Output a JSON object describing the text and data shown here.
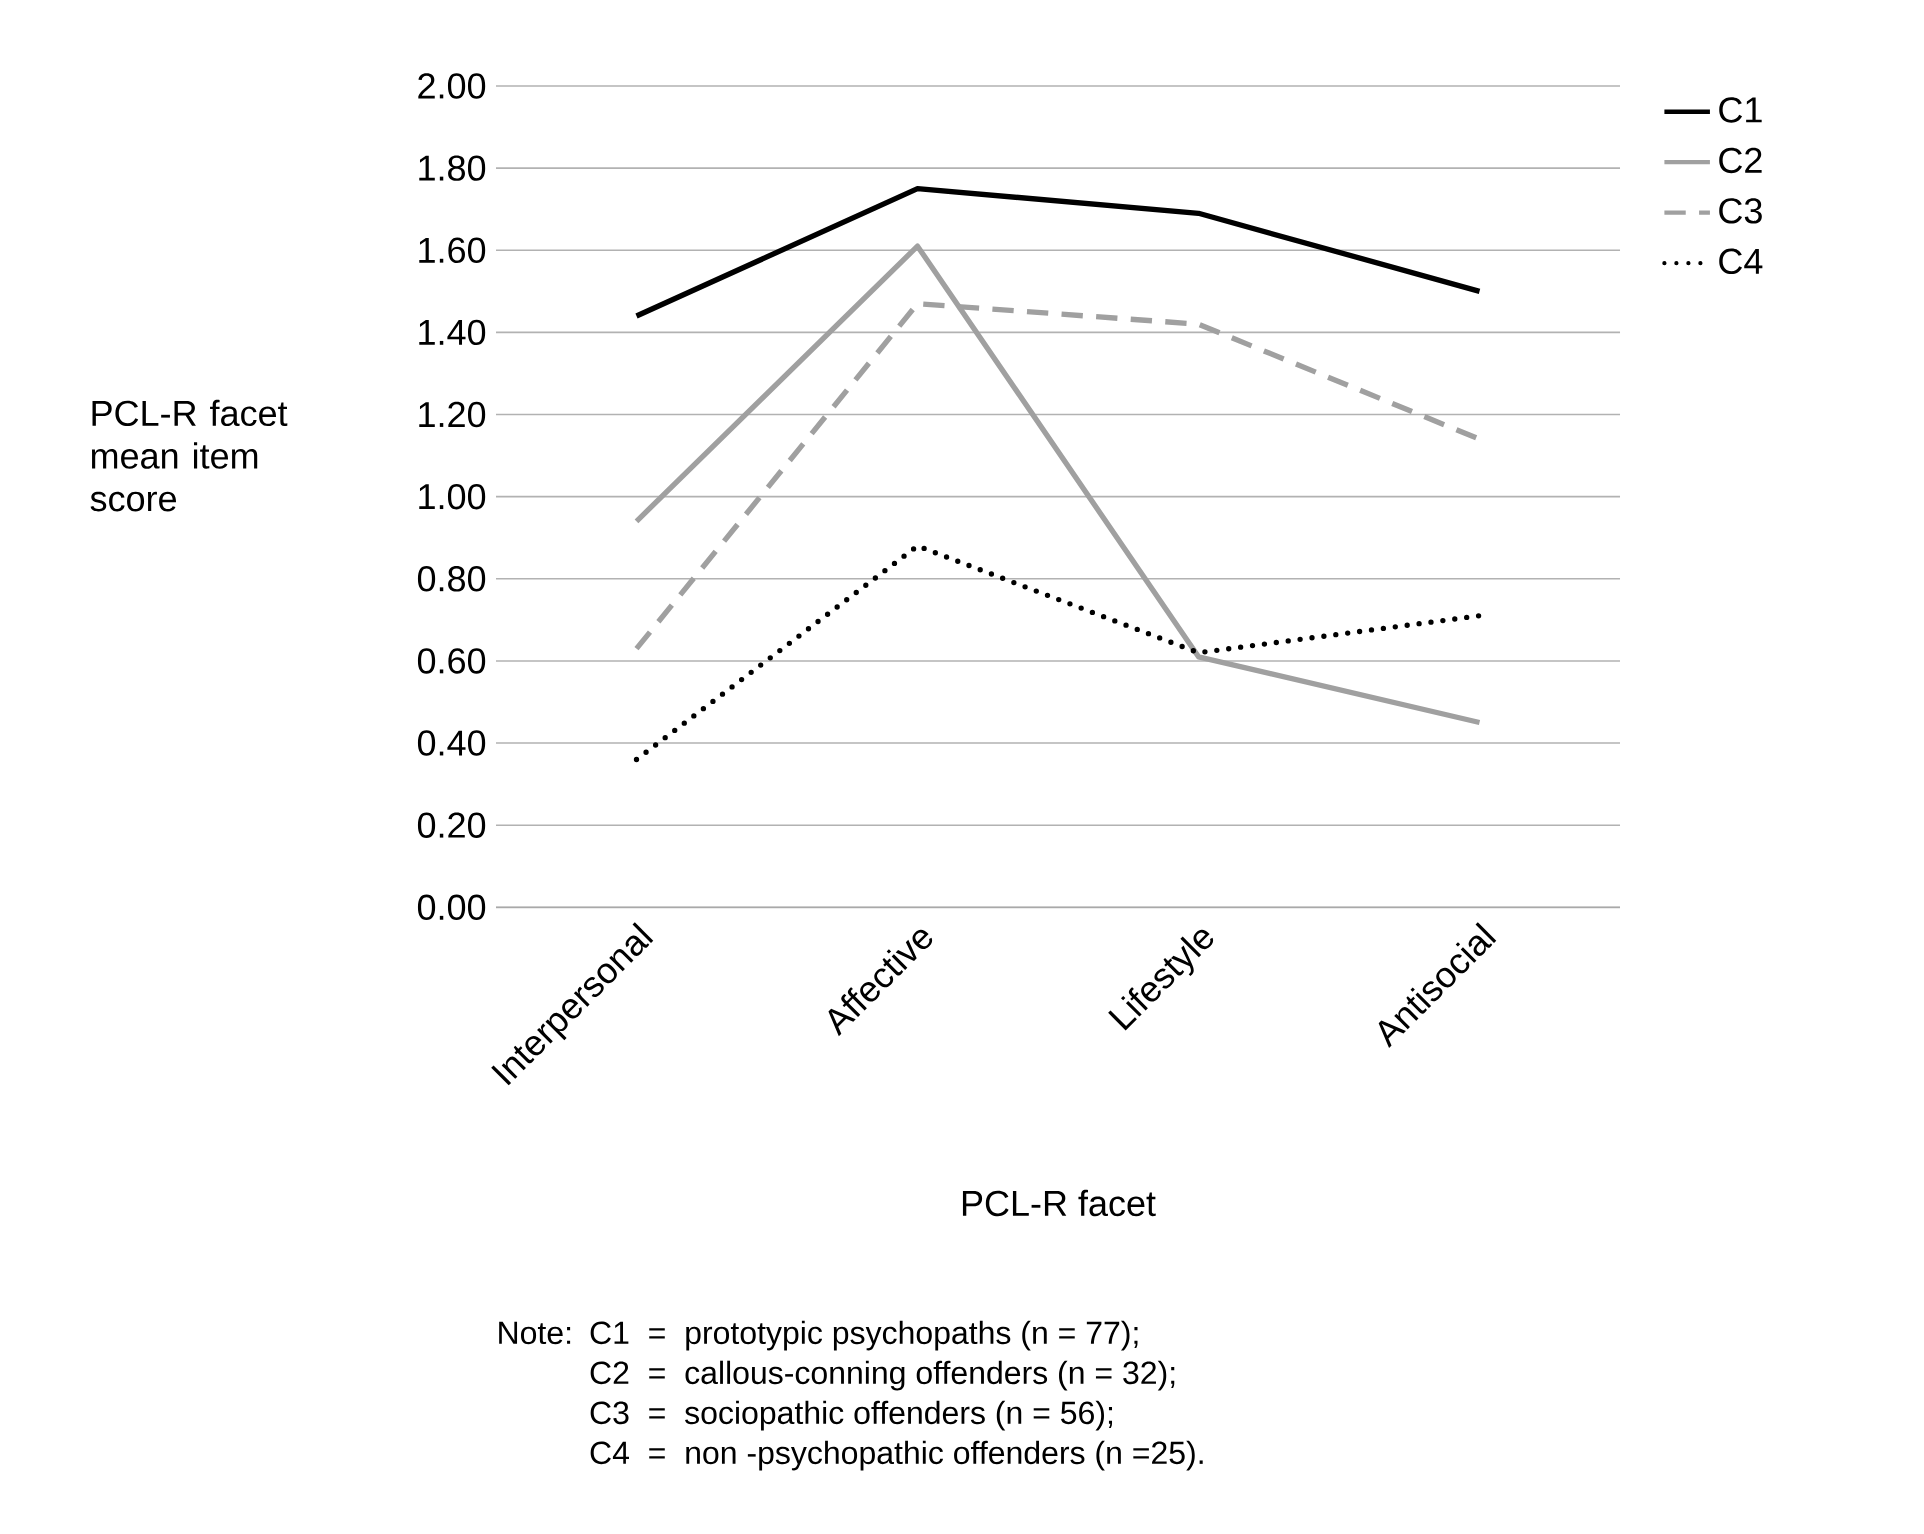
{
  "chart_data": {
    "type": "line",
    "xlabel": "PCL-R facet",
    "ylabel": "PCL-R facet mean item score",
    "categories": [
      "Interpersonal",
      "Affective",
      "Lifestyle",
      "Antisocial"
    ],
    "series": [
      {
        "name": "C1",
        "color": "#000000",
        "line_style": "solid",
        "values": [
          1.44,
          1.75,
          1.69,
          1.5
        ]
      },
      {
        "name": "C2",
        "color": "#a0a0a0",
        "line_style": "solid",
        "values": [
          0.94,
          1.61,
          0.61,
          0.45
        ]
      },
      {
        "name": "C3",
        "color": "#a0a0a0",
        "line_style": "dashed",
        "values": [
          0.63,
          1.47,
          1.42,
          1.14
        ]
      },
      {
        "name": "C4",
        "color": "#000000",
        "line_style": "dotted",
        "values": [
          0.36,
          0.88,
          0.62,
          0.71
        ]
      }
    ],
    "ylim": [
      0,
      2
    ],
    "yticks": [
      {
        "value": 0,
        "label": "0.00"
      },
      {
        "value": 0.2,
        "label": "0.20"
      },
      {
        "value": 0.4,
        "label": "0.40"
      },
      {
        "value": 0.6,
        "label": "0.60"
      },
      {
        "value": 0.8,
        "label": "0.80"
      },
      {
        "value": 1,
        "label": "1.00"
      },
      {
        "value": 1.2,
        "label": "1.20"
      },
      {
        "value": 1.4,
        "label": "1.40"
      },
      {
        "value": 1.6,
        "label": "1.60"
      },
      {
        "value": 1.8,
        "label": "1.80"
      },
      {
        "value": 2,
        "label": "2.00"
      }
    ],
    "grid": "y",
    "legend": "top right",
    "annotations": [
      "Note:",
      "C1  =  prototypic psychopaths (n = 77);",
      "C2  =  callous-conning offenders (n = 32);",
      "C3  =  sociopathic offenders (n = 56);",
      "C4  =  non -psychopathic offenders (n =25)."
    ]
  }
}
